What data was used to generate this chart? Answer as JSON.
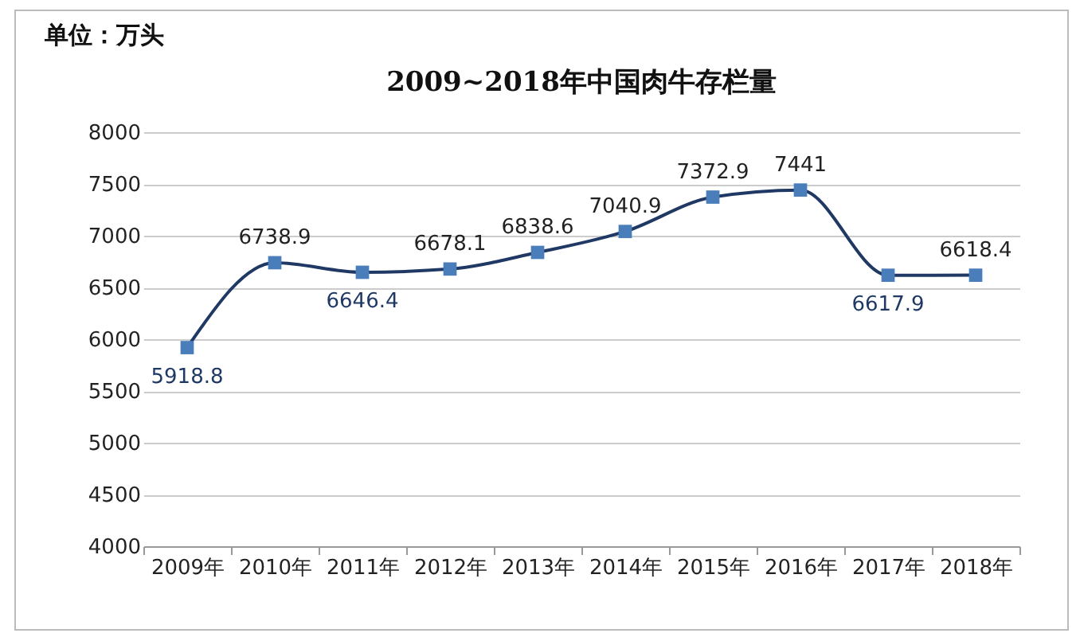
{
  "chart_data": {
    "type": "line",
    "title": "2009~2018年中国肉牛存栏量",
    "annotations": [
      "单位：万头"
    ],
    "categories": [
      "2009年",
      "2010年",
      "2011年",
      "2012年",
      "2013年",
      "2014年",
      "2015年",
      "2016年",
      "2017年",
      "2018年"
    ],
    "series": [
      {
        "color": "#1f3864",
        "values": [
          5918.8,
          6738.9,
          6646.4,
          6678.1,
          6838.6,
          7040.9,
          7372.9,
          7441,
          6617.9,
          6618.4
        ]
      }
    ],
    "ylim": [
      4000,
      8000
    ],
    "yticks": [
      4000,
      4500,
      5000,
      5500,
      6000,
      6500,
      7000,
      7500,
      8000
    ],
    "grid": "y",
    "marker": "square",
    "data_labels": true
  }
}
